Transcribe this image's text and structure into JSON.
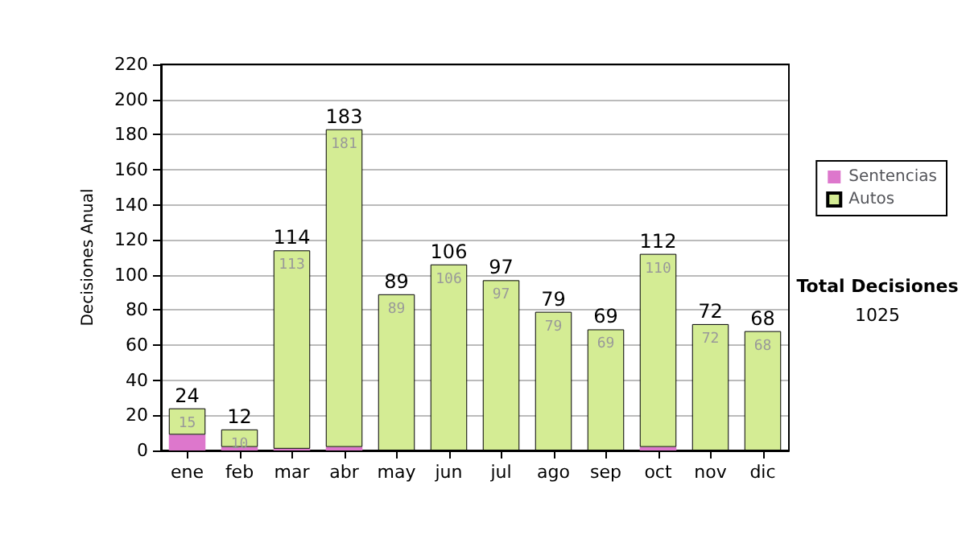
{
  "chart_data": {
    "type": "bar",
    "stacked": true,
    "ylabel": "Decisiones Anual",
    "categories": [
      "ene",
      "feb",
      "mar",
      "abr",
      "may",
      "jun",
      "jul",
      "ago",
      "sep",
      "oct",
      "nov",
      "dic"
    ],
    "series": [
      {
        "name": "Sentencias",
        "color": "#dd77cc",
        "values": [
          9,
          2,
          1,
          2,
          0,
          0,
          0,
          0,
          0,
          2,
          0,
          0
        ]
      },
      {
        "name": "Autos",
        "color": "#d4ec94",
        "values": [
          15,
          10,
          113,
          181,
          89,
          106,
          97,
          79,
          69,
          110,
          72,
          68
        ],
        "value_labels": [
          "15",
          "10",
          "113",
          "181",
          "89",
          "106",
          "97",
          "79",
          "69",
          "110",
          "72",
          "68"
        ]
      }
    ],
    "totals": [
      "24",
      "12",
      "114",
      "183",
      "89",
      "106",
      "97",
      "79",
      "69",
      "112",
      "72",
      "68"
    ],
    "ylim": [
      0,
      220
    ],
    "yticks": [
      0,
      20,
      40,
      60,
      80,
      100,
      120,
      140,
      160,
      180,
      200,
      220
    ],
    "grid": "y",
    "legend": "right",
    "annotations": [
      "Total Decisiones",
      "1025"
    ]
  }
}
